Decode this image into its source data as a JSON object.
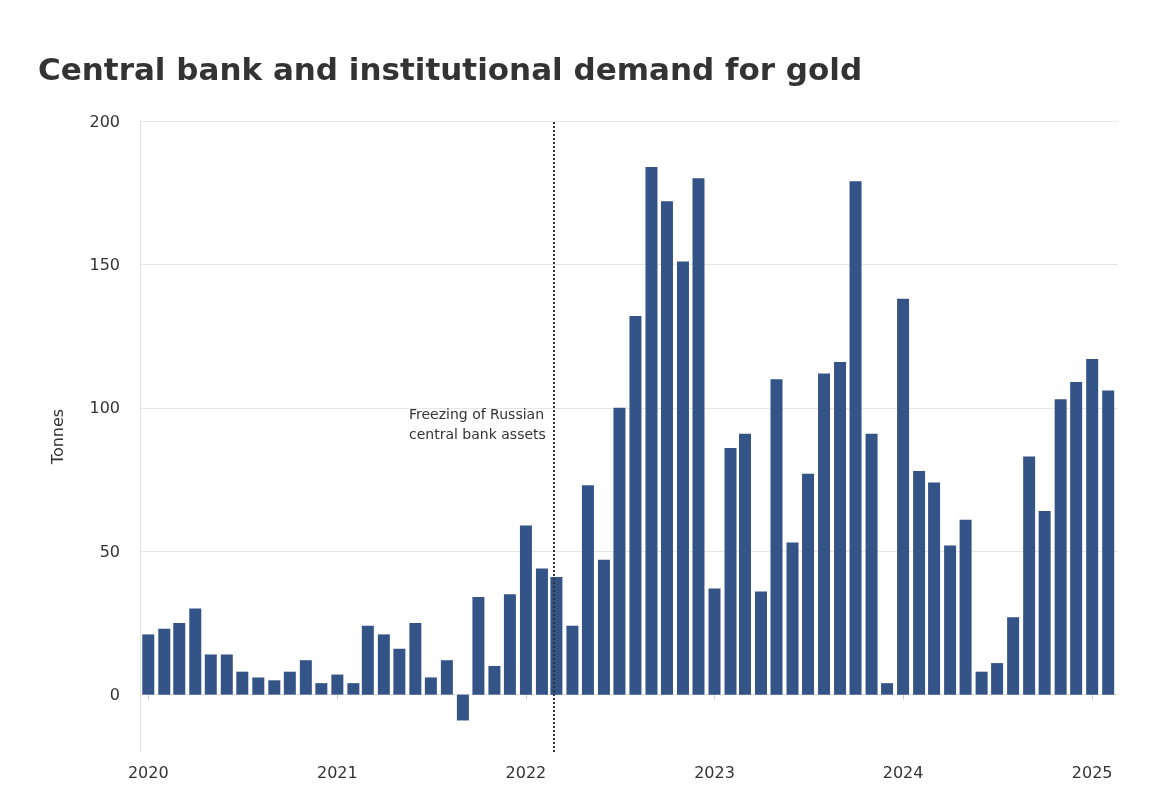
{
  "chart_data": {
    "type": "bar",
    "title": "Central bank and institutional demand for gold",
    "ylabel": "Tonnes",
    "x": [
      "2020-01",
      "2020-02",
      "2020-03",
      "2020-04",
      "2020-05",
      "2020-06",
      "2020-07",
      "2020-08",
      "2020-09",
      "2020-10",
      "2020-11",
      "2020-12",
      "2021-01",
      "2021-02",
      "2021-03",
      "2021-04",
      "2021-05",
      "2021-06",
      "2021-07",
      "2021-08",
      "2021-09",
      "2021-10",
      "2021-11",
      "2021-12",
      "2022-01",
      "2022-02",
      "2022-03",
      "2022-04",
      "2022-05",
      "2022-06",
      "2022-07",
      "2022-08",
      "2022-09",
      "2022-10",
      "2022-11",
      "2022-12",
      "2023-01",
      "2023-02",
      "2023-03",
      "2023-04",
      "2023-05",
      "2023-06",
      "2023-07",
      "2023-08",
      "2023-09",
      "2023-10",
      "2023-11",
      "2023-12",
      "2024-01",
      "2024-02",
      "2024-03",
      "2024-04",
      "2024-05",
      "2024-06",
      "2024-07",
      "2024-08",
      "2024-09",
      "2024-10",
      "2024-11",
      "2024-12",
      "2025-01",
      "2025-02"
    ],
    "values": [
      21,
      23,
      25,
      30,
      14,
      14,
      8,
      6,
      5,
      8,
      12,
      4,
      7,
      4,
      24,
      21,
      16,
      25,
      6,
      12,
      -9,
      34,
      10,
      35,
      59,
      44,
      41,
      24,
      73,
      47,
      100,
      132,
      184,
      172,
      151,
      180,
      37,
      86,
      91,
      36,
      110,
      53,
      77,
      112,
      116,
      179,
      91,
      4,
      138,
      78,
      74,
      52,
      61,
      8,
      11,
      27,
      83,
      64,
      103,
      109,
      117,
      106
    ],
    "color": "#345487",
    "xlim": [
      "2019-12-16",
      "2025-02-20"
    ],
    "xticks": [
      "2020",
      "2021",
      "2022",
      "2023",
      "2024",
      "2025"
    ],
    "ylim": [
      -20,
      200
    ],
    "yticks": [
      0,
      50,
      100,
      150,
      200
    ],
    "grid": "y",
    "ref_lines": [
      {
        "axis": "x",
        "value": "2022-02-24",
        "label": "Freezing of Russian\ncentral bank assets",
        "color": "#333333",
        "line_style": "dotted"
      }
    ]
  }
}
